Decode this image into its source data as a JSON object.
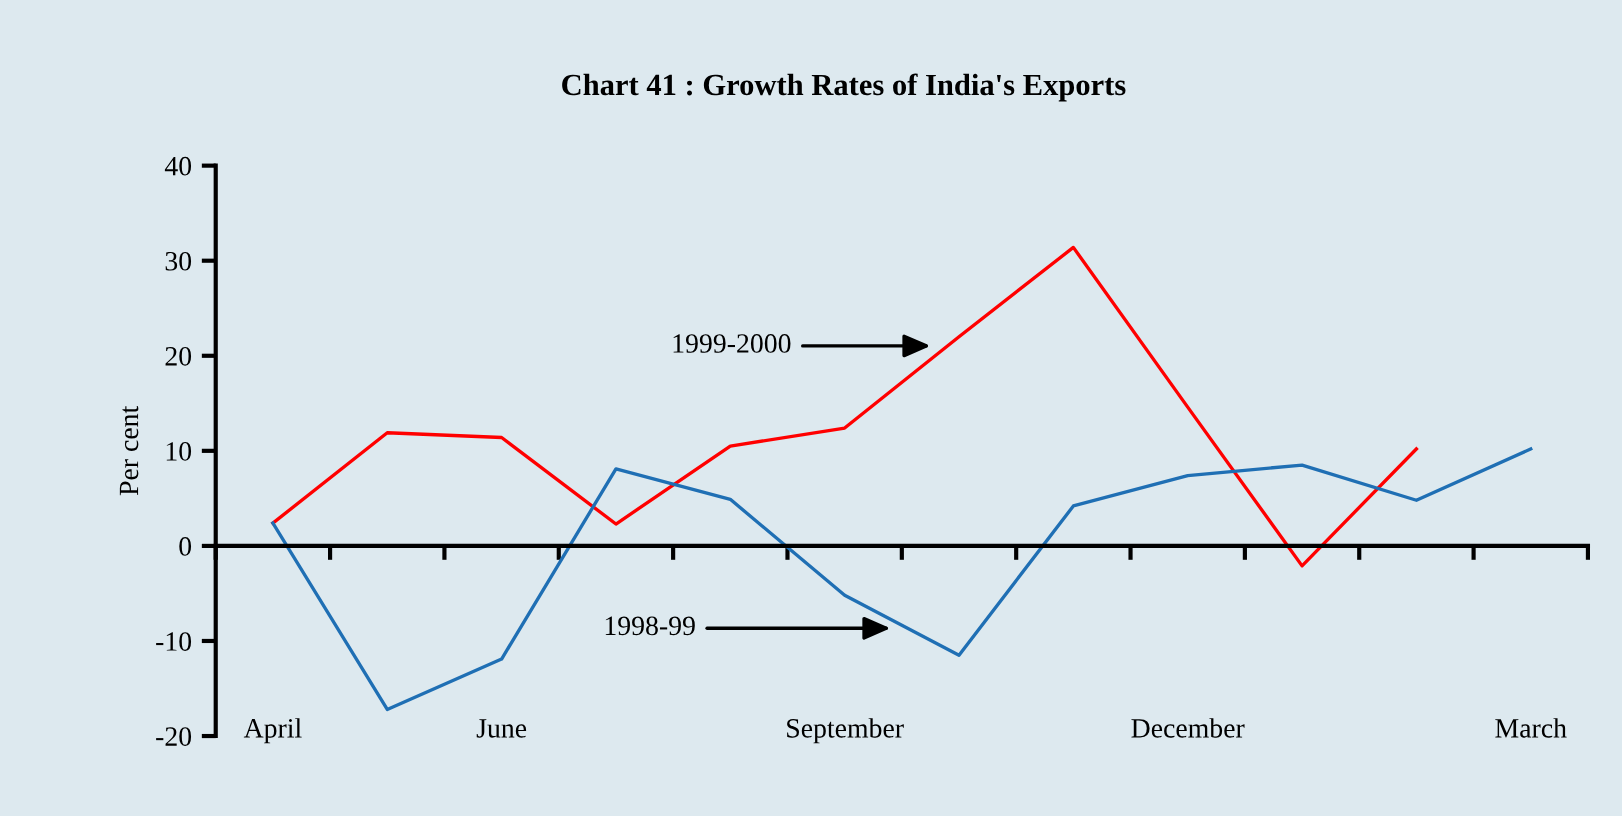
{
  "chart_data": {
    "type": "line",
    "title": "Chart 41 : Growth Rates of India's Exports",
    "ylabel": "Per cent",
    "categories": [
      "April",
      null,
      "June",
      null,
      null,
      "September",
      null,
      null,
      "December",
      null,
      null,
      "March"
    ],
    "series": [
      {
        "name": "1999-2000",
        "color": "#ff0000",
        "values": [
          2.4,
          11.9,
          11.4,
          2.3,
          10.5,
          12.4,
          22,
          31.4,
          14.6,
          -2.1,
          10.2,
          null
        ]
      },
      {
        "name": "1998-99",
        "color": "#1f6fb4",
        "values": [
          2.4,
          -17.2,
          -11.9,
          8.1,
          4.9,
          -5.2,
          -11.5,
          4.2,
          7.4,
          8.5,
          4.8,
          10.2
        ]
      }
    ],
    "ylim": [
      -20,
      40
    ],
    "yticks": [
      -20,
      -10,
      0,
      10,
      20,
      30,
      40
    ],
    "legend": false,
    "marker": "none",
    "line_style": "solid"
  }
}
